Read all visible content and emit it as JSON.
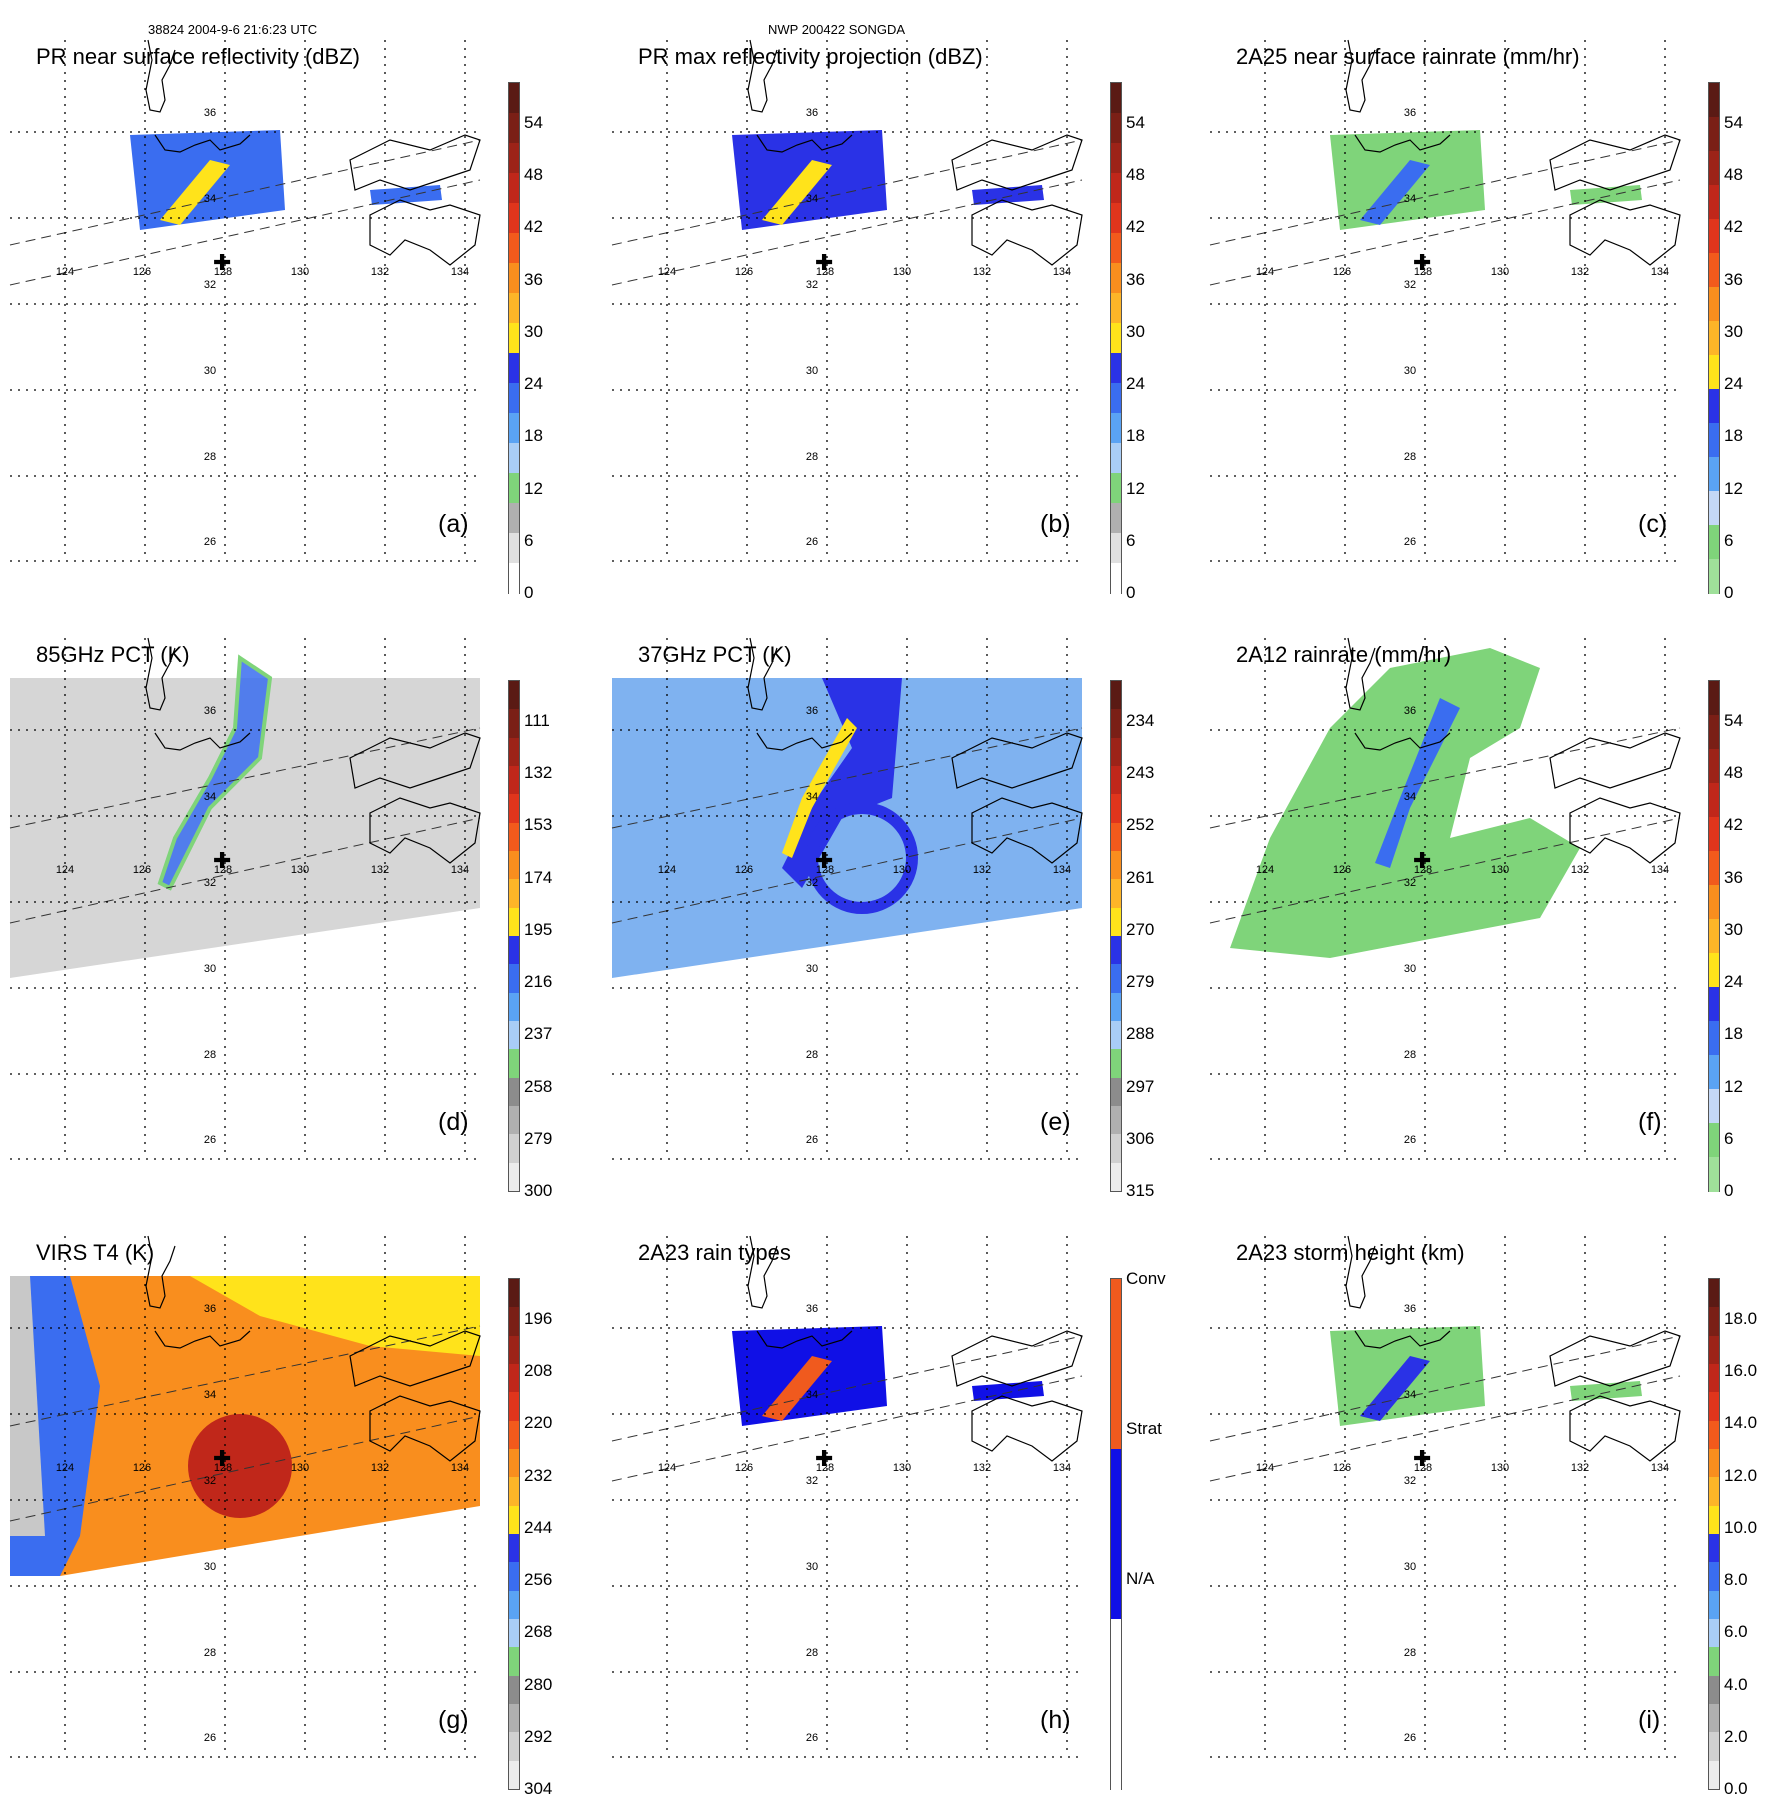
{
  "header": {
    "left": "38824 2004-9-6 21:6:23 UTC",
    "center": "NWP 200422 SONGDA"
  },
  "axes": {
    "lon_labels": [
      "124",
      "126",
      "128",
      "130",
      "132",
      "134"
    ],
    "lat_labels": [
      "36",
      "34",
      "32",
      "30",
      "28",
      "26"
    ]
  },
  "panels": [
    {
      "key": "a",
      "title": "PR near surface reflectivity (dBZ)",
      "label": "(a)",
      "ticks": [
        "54",
        "48",
        "42",
        "36",
        "30",
        "24",
        "18",
        "12",
        "6",
        "0"
      ],
      "colors": [
        "#5a1a14",
        "#7a1f16",
        "#9c2318",
        "#c0271a",
        "#e0351c",
        "#f25a1c",
        "#f98e1e",
        "#fdb528",
        "#ffe31b",
        "#2a32e6",
        "#3a6df0",
        "#5aa3f4",
        "#a9cdf6",
        "#7fd47a",
        "#b0b0b0",
        "#e0e0e0",
        "#ffffff"
      ]
    },
    {
      "key": "b",
      "title": "PR max reflectivity projection (dBZ)",
      "label": "(b)",
      "ticks": [
        "54",
        "48",
        "42",
        "36",
        "30",
        "24",
        "18",
        "12",
        "6",
        "0"
      ],
      "colors": [
        "#5a1a14",
        "#7a1f16",
        "#9c2318",
        "#c0271a",
        "#e0351c",
        "#f25a1c",
        "#f98e1e",
        "#fdb528",
        "#ffe31b",
        "#2a32e6",
        "#3a6df0",
        "#5aa3f4",
        "#a9cdf6",
        "#7fd47a",
        "#b0b0b0",
        "#e0e0e0",
        "#ffffff"
      ]
    },
    {
      "key": "c",
      "title": "2A25 near surface rainrate (mm/hr)",
      "label": "(c)",
      "ticks": [
        "54",
        "48",
        "42",
        "36",
        "30",
        "24",
        "18",
        "12",
        "6",
        "0"
      ],
      "colors": [
        "#5a1a14",
        "#7a1f16",
        "#9c2318",
        "#c0271a",
        "#e0351c",
        "#f25a1c",
        "#f98e1e",
        "#fdb528",
        "#ffe31b",
        "#2a32e6",
        "#3a6df0",
        "#5aa3f4",
        "#c4d8f6",
        "#7fd47a",
        "#9fe09a"
      ]
    },
    {
      "key": "d",
      "title": "85GHz PCT (K)",
      "label": "(d)",
      "ticks": [
        "111",
        "132",
        "153",
        "174",
        "195",
        "216",
        "237",
        "258",
        "279",
        "300"
      ],
      "colors": [
        "#5a1a14",
        "#7a1f16",
        "#9c2318",
        "#c0271a",
        "#e0351c",
        "#f25a1c",
        "#f98e1e",
        "#fdb528",
        "#ffe31b",
        "#2a32e6",
        "#3a6df0",
        "#5aa3f4",
        "#a9cdf6",
        "#7fd47a",
        "#8c8c8c",
        "#b0b0b0",
        "#d0d0d0",
        "#ececec"
      ]
    },
    {
      "key": "e",
      "title": "37GHz PCT (K)",
      "label": "(e)",
      "ticks": [
        "234",
        "243",
        "252",
        "261",
        "270",
        "279",
        "288",
        "297",
        "306",
        "315"
      ],
      "colors": [
        "#5a1a14",
        "#7a1f16",
        "#9c2318",
        "#c0271a",
        "#e0351c",
        "#f25a1c",
        "#f98e1e",
        "#fdb528",
        "#ffe31b",
        "#2a32e6",
        "#3a6df0",
        "#5aa3f4",
        "#a9cdf6",
        "#7fd47a",
        "#8c8c8c",
        "#b0b0b0",
        "#d0d0d0",
        "#ececec"
      ]
    },
    {
      "key": "f",
      "title": "2A12 rainrate (mm/hr)",
      "label": "(f)",
      "ticks": [
        "54",
        "48",
        "42",
        "36",
        "30",
        "24",
        "18",
        "12",
        "6",
        "0"
      ],
      "colors": [
        "#5a1a14",
        "#7a1f16",
        "#9c2318",
        "#c0271a",
        "#e0351c",
        "#f25a1c",
        "#f98e1e",
        "#fdb528",
        "#ffe31b",
        "#2a32e6",
        "#3a6df0",
        "#5aa3f4",
        "#c4d8f6",
        "#7fd47a",
        "#9fe09a"
      ]
    },
    {
      "key": "g",
      "title": "VIRS T4 (K)",
      "label": "(g)",
      "ticks": [
        "196",
        "208",
        "220",
        "232",
        "244",
        "256",
        "268",
        "280",
        "292",
        "304"
      ],
      "colors": [
        "#5a1a14",
        "#7a1f16",
        "#9c2318",
        "#c0271a",
        "#e0351c",
        "#f25a1c",
        "#f98e1e",
        "#fdb528",
        "#ffe31b",
        "#2a32e6",
        "#3a6df0",
        "#5aa3f4",
        "#a9cdf6",
        "#7fd47a",
        "#8c8c8c",
        "#b0b0b0",
        "#d0d0d0",
        "#ececec"
      ]
    },
    {
      "key": "h",
      "title": "2A23 rain types",
      "label": "(h)",
      "ticks": [
        "Conv",
        "Strat",
        "N/A"
      ],
      "colors": [
        "#f05a1e",
        "#1010e6",
        "#ffffff"
      ]
    },
    {
      "key": "i",
      "title": "2A23 storm height (km)",
      "label": "(i)",
      "ticks": [
        "18.0",
        "16.0",
        "14.0",
        "12.0",
        "10.0",
        "8.0",
        "6.0",
        "4.0",
        "2.0",
        "0.0"
      ],
      "colors": [
        "#5a1a14",
        "#7a1f16",
        "#9c2318",
        "#c0271a",
        "#e0351c",
        "#f25a1c",
        "#f98e1e",
        "#fdb528",
        "#ffe31b",
        "#2a32e6",
        "#3a6df0",
        "#5aa3f4",
        "#a9cdf6",
        "#7fd47a",
        "#8c8c8c",
        "#b0b0b0",
        "#d0d0d0",
        "#ececec"
      ]
    }
  ]
}
